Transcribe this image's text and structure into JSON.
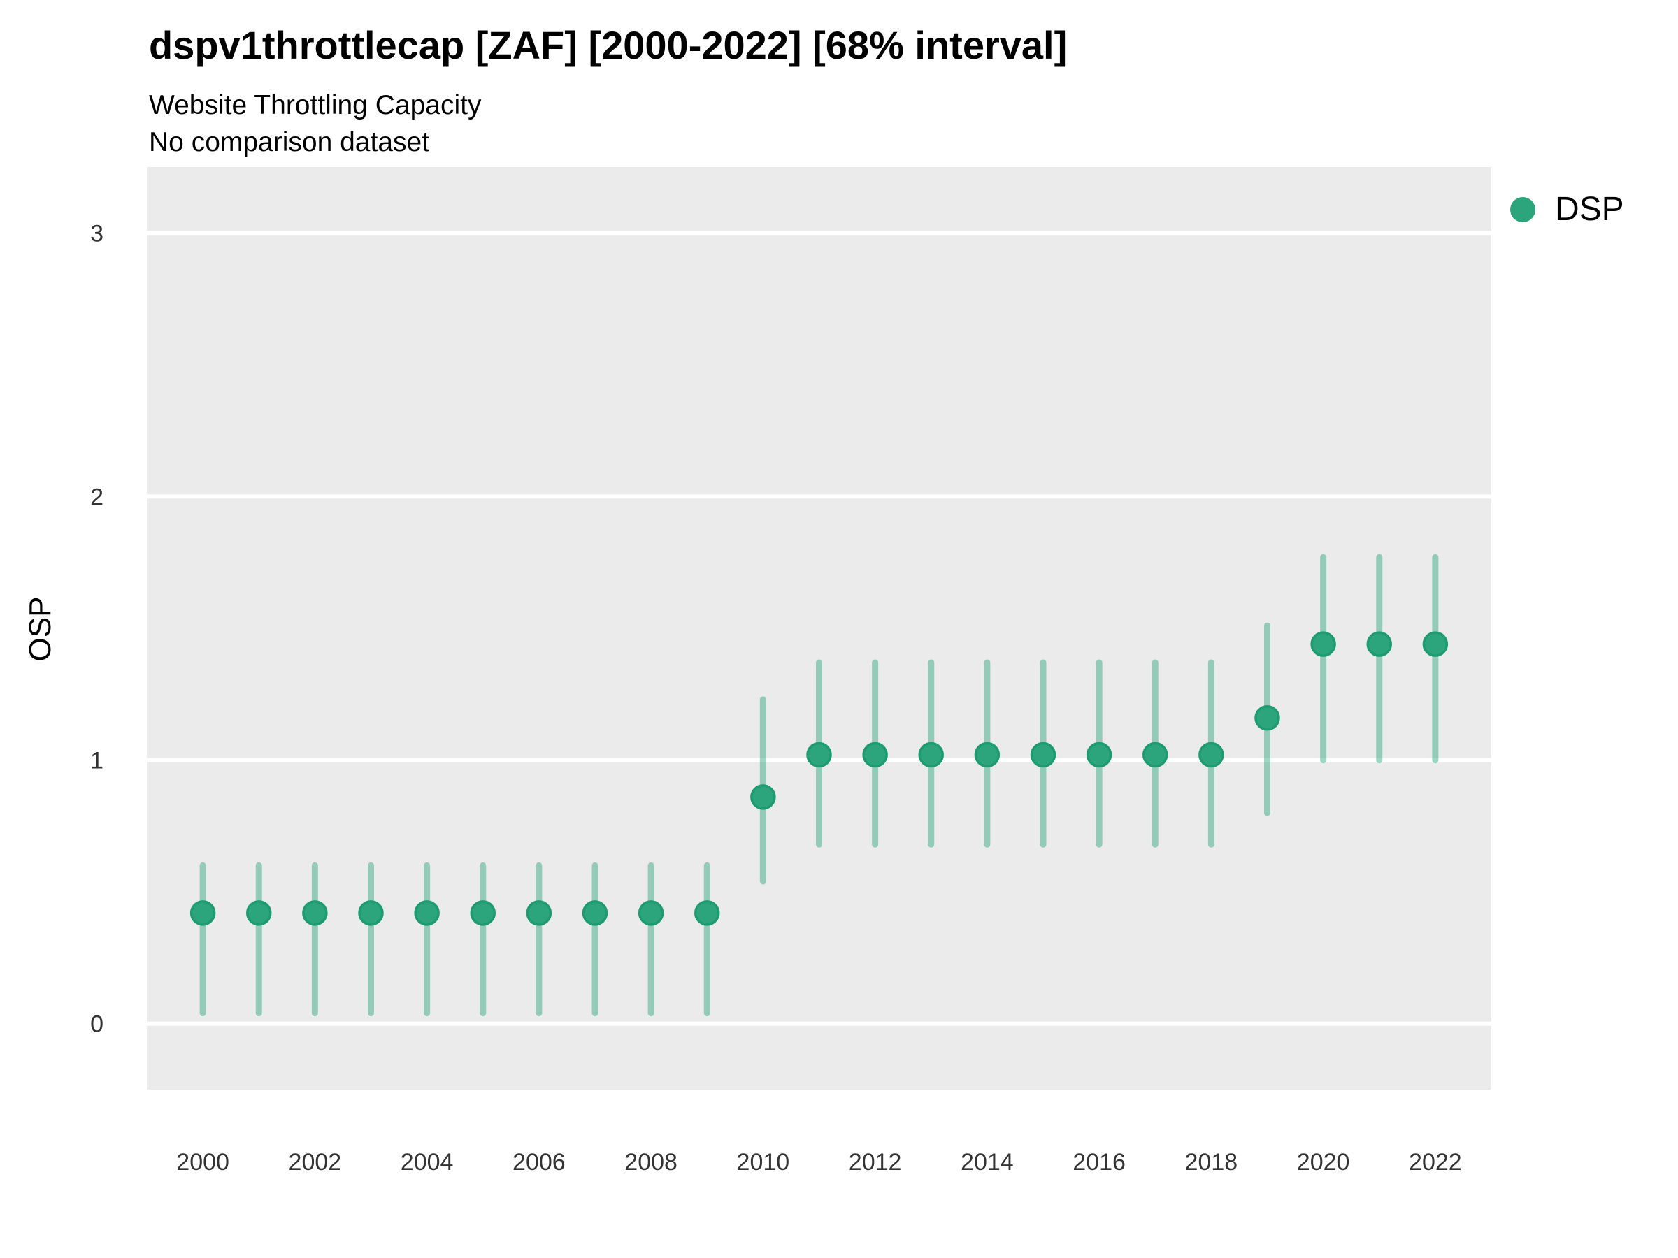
{
  "header": {
    "title": "dspv1throttlecap [ZAF] [2000-2022] [68% interval]",
    "subtitle": "Website Throttling Capacity",
    "comparison_note": "No comparison dataset"
  },
  "legend": {
    "position": "right",
    "items": [
      {
        "label": "DSP",
        "marker": "circle-icon",
        "color": "#2CA47C"
      }
    ]
  },
  "colors": {
    "panel_background": "#EBEBEB",
    "gridline": "#FFFFFF",
    "point_fill": "#2CA47C",
    "point_stroke": "#1F9B72",
    "interval_line": "rgba(42,163,123,0.45)",
    "tick_text": "#333333"
  },
  "chart_data": {
    "type": "scatter",
    "subtype": "pointrange",
    "title": "dspv1throttlecap [ZAF] [2000-2022] [68% interval]",
    "subtitle": "Website Throttling Capacity",
    "note": "No comparison dataset",
    "interval_level": "68%",
    "xlabel": "",
    "ylabel": "OSP",
    "xlim": [
      1999,
      2023
    ],
    "ylim": [
      -0.25,
      3.25
    ],
    "x_ticks": [
      2000,
      2002,
      2004,
      2006,
      2008,
      2010,
      2012,
      2014,
      2016,
      2018,
      2020,
      2022
    ],
    "y_ticks": [
      0,
      1,
      2,
      3
    ],
    "grid": "major-horizontal-only",
    "legend_position": "right",
    "series": [
      {
        "name": "DSP",
        "x": [
          2000,
          2001,
          2002,
          2003,
          2004,
          2005,
          2006,
          2007,
          2008,
          2009,
          2010,
          2011,
          2012,
          2013,
          2014,
          2015,
          2016,
          2017,
          2018,
          2019,
          2020,
          2021,
          2022
        ],
        "y": [
          0.42,
          0.42,
          0.42,
          0.42,
          0.42,
          0.42,
          0.42,
          0.42,
          0.42,
          0.42,
          0.86,
          1.02,
          1.02,
          1.02,
          1.02,
          1.02,
          1.02,
          1.02,
          1.02,
          1.16,
          1.44,
          1.44,
          1.44
        ],
        "y_lo": [
          0.04,
          0.04,
          0.04,
          0.04,
          0.04,
          0.04,
          0.04,
          0.04,
          0.04,
          0.04,
          0.54,
          0.68,
          0.68,
          0.68,
          0.68,
          0.68,
          0.68,
          0.68,
          0.68,
          0.8,
          1.0,
          1.0,
          1.0
        ],
        "y_hi": [
          0.6,
          0.6,
          0.6,
          0.6,
          0.6,
          0.6,
          0.6,
          0.6,
          0.6,
          0.6,
          1.23,
          1.37,
          1.37,
          1.37,
          1.37,
          1.37,
          1.37,
          1.37,
          1.37,
          1.51,
          1.77,
          1.77,
          1.77
        ]
      }
    ]
  }
}
